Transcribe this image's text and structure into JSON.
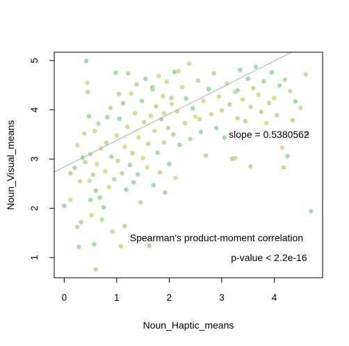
{
  "chart_data": {
    "type": "scatter",
    "title": "",
    "xlabel": "Noun_Haptic_means",
    "ylabel": "Noun_Visual_means",
    "xlim": [
      -0.19,
      4.92
    ],
    "ylim": [
      0.59,
      5.17
    ],
    "x_ticks": [
      0,
      1,
      2,
      3,
      4
    ],
    "y_ticks": [
      1,
      2,
      3,
      4,
      5
    ],
    "grid": false,
    "legend": "none",
    "point_colors": [
      "#a8dca8",
      "#d6df98",
      "#bfdd9f"
    ],
    "regression": {
      "slope": 0.5380562,
      "intercept": 2.84
    },
    "annotations": [
      {
        "text": "slope = 0.5380562",
        "x": 3.9,
        "y": 3.5
      },
      {
        "text": "Spearman's product-moment correlation",
        "x": 2.9,
        "y": 1.4
      },
      {
        "text": "p-value < 2.2e-16",
        "x": 3.9,
        "y": 1.0
      }
    ],
    "series": [
      {
        "name": "",
        "points": [
          [
            0.0,
            2.05
          ],
          [
            0.12,
            2.17
          ],
          [
            0.12,
            2.71
          ],
          [
            0.2,
            2.82
          ],
          [
            0.25,
            3.28
          ],
          [
            0.25,
            1.62
          ],
          [
            0.28,
            1.22
          ],
          [
            0.3,
            2.55
          ],
          [
            0.32,
            1.72
          ],
          [
            0.35,
            3.03
          ],
          [
            0.38,
            3.52
          ],
          [
            0.4,
            2.94
          ],
          [
            0.42,
            4.99
          ],
          [
            0.44,
            4.55
          ],
          [
            0.45,
            4.36
          ],
          [
            0.47,
            3.87
          ],
          [
            0.48,
            2.56
          ],
          [
            0.5,
            3.1
          ],
          [
            0.5,
            2.17
          ],
          [
            0.52,
            1.86
          ],
          [
            0.55,
            2.68
          ],
          [
            0.57,
            1.27
          ],
          [
            0.58,
            3.57
          ],
          [
            0.6,
            0.76
          ],
          [
            0.6,
            2.36
          ],
          [
            0.62,
            2.9
          ],
          [
            0.65,
            3.72
          ],
          [
            0.68,
            2.22
          ],
          [
            0.7,
            3.22
          ],
          [
            0.72,
            1.77
          ],
          [
            0.75,
            2.02
          ],
          [
            0.78,
            2.75
          ],
          [
            0.8,
            3.33
          ],
          [
            0.82,
            3.85
          ],
          [
            0.85,
            2.43
          ],
          [
            0.88,
            4.04
          ],
          [
            0.9,
            3.05
          ],
          [
            0.92,
            1.53
          ],
          [
            0.95,
            2.59
          ],
          [
            0.98,
            4.75
          ],
          [
            1.0,
            3.48
          ],
          [
            1.02,
            2.96
          ],
          [
            1.05,
            3.82
          ],
          [
            1.08,
            1.23
          ],
          [
            1.1,
            2.71
          ],
          [
            1.12,
            4.13
          ],
          [
            1.15,
            3.25
          ],
          [
            1.15,
            1.64
          ],
          [
            1.18,
            2.38
          ],
          [
            1.2,
            3.66
          ],
          [
            1.22,
            4.74
          ],
          [
            1.25,
            2.88
          ],
          [
            1.28,
            4.33
          ],
          [
            1.3,
            3.12
          ],
          [
            1.32,
            2.53
          ],
          [
            1.35,
            3.93
          ],
          [
            1.38,
            4.52
          ],
          [
            1.4,
            2.69
          ],
          [
            1.42,
            3.44
          ],
          [
            1.45,
            2.12
          ],
          [
            1.48,
            4.18
          ],
          [
            1.5,
            3.02
          ],
          [
            1.52,
            3.75
          ],
          [
            1.55,
            4.63
          ],
          [
            1.58,
            2.83
          ],
          [
            1.6,
            3.31
          ],
          [
            1.62,
            1.24
          ],
          [
            1.65,
            3.88
          ],
          [
            1.68,
            4.41
          ],
          [
            1.7,
            2.47
          ],
          [
            1.72,
            3.57
          ],
          [
            1.75,
            4.07
          ],
          [
            1.78,
            3.13
          ],
          [
            1.8,
            4.69
          ],
          [
            1.82,
            2.73
          ],
          [
            1.85,
            3.81
          ],
          [
            1.88,
            4.28
          ],
          [
            1.9,
            3.34
          ],
          [
            1.92,
            2.32
          ],
          [
            1.95,
            4.57
          ],
          [
            1.98,
            3.63
          ],
          [
            2.0,
            2.9
          ],
          [
            2.05,
            4.12
          ],
          [
            2.08,
            3.5
          ],
          [
            2.1,
            4.77
          ],
          [
            2.12,
            2.62
          ],
          [
            2.15,
            3.97
          ],
          [
            2.2,
            3.29
          ],
          [
            2.25,
            4.46
          ],
          [
            2.3,
            3.73
          ],
          [
            2.32,
            4.23
          ],
          [
            2.38,
            4.94
          ],
          [
            2.4,
            3.41
          ],
          [
            2.45,
            4.03
          ],
          [
            2.5,
            3.86
          ],
          [
            2.55,
            4.59
          ],
          [
            2.6,
            3.55
          ],
          [
            2.65,
            4.18
          ],
          [
            2.7,
            3.07
          ],
          [
            2.75,
            4.42
          ],
          [
            2.8,
            3.91
          ],
          [
            2.85,
            4.74
          ],
          [
            2.9,
            3.63
          ],
          [
            2.95,
            4.27
          ],
          [
            3.0,
            3.99
          ],
          [
            3.05,
            3.44
          ],
          [
            3.1,
            4.53
          ],
          [
            3.15,
            4.11
          ],
          [
            3.2,
            3.01
          ],
          [
            3.25,
            4.36
          ],
          [
            3.3,
            3.83
          ],
          [
            3.35,
            4.81
          ],
          [
            3.4,
            4.21
          ],
          [
            3.45,
            3.77
          ],
          [
            3.5,
            4.63
          ],
          [
            3.55,
            4.06
          ],
          [
            3.6,
            4.44
          ],
          [
            3.65,
            4.87
          ],
          [
            3.7,
            4.31
          ],
          [
            3.75,
            3.96
          ],
          [
            3.8,
            4.58
          ],
          [
            3.85,
            3.73
          ],
          [
            3.9,
            4.14
          ],
          [
            3.95,
            4.76
          ],
          [
            4.0,
            4.24
          ],
          [
            4.05,
            3.89
          ],
          [
            4.1,
            4.49
          ],
          [
            4.15,
            3.23
          ],
          [
            4.2,
            4.61
          ],
          [
            4.25,
            3.06
          ],
          [
            4.3,
            4.38
          ],
          [
            4.35,
            3.79
          ],
          [
            4.4,
            4.17
          ],
          [
            4.5,
            4.04
          ],
          [
            4.6,
            4.72
          ],
          [
            4.7,
            1.94
          ],
          [
            1.9,
            3.93
          ],
          [
            3.55,
            2.85
          ],
          [
            3.3,
            4.39
          ],
          [
            2.18,
            4.79
          ],
          [
            2.04,
            4.24
          ],
          [
            1.68,
            4.46
          ],
          [
            2.58,
            3.81
          ],
          [
            4.18,
            2.83
          ],
          [
            4.62,
            3.51
          ],
          [
            3.26,
            3.02
          ],
          [
            1.04,
            4.32
          ]
        ]
      }
    ]
  }
}
